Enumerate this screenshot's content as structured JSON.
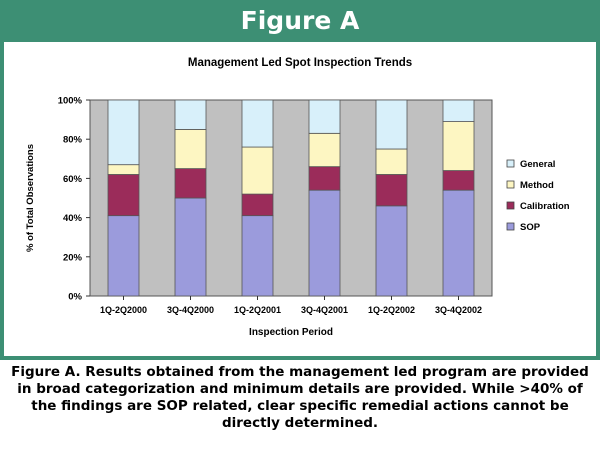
{
  "figure_label": "Figure A",
  "caption": "Figure A.  Results obtained from the management led program are provided in broad categorization and minimum details are provided.  While >40% of the findings are SOP related, clear specific remedial actions cannot be directly determined.",
  "chart_data": {
    "type": "bar",
    "stacked": true,
    "title": "Management Led Spot Inspection Trends",
    "xlabel": "Inspection Period",
    "ylabel": "% of Total Observations",
    "ylim": [
      0,
      100
    ],
    "yticks": [
      "0%",
      "20%",
      "40%",
      "60%",
      "80%",
      "100%"
    ],
    "categories": [
      "1Q-2Q2000",
      "3Q-4Q2000",
      "1Q-2Q2001",
      "3Q-4Q2001",
      "1Q-2Q2002",
      "3Q-4Q2002"
    ],
    "series": [
      {
        "name": "SOP",
        "color": "#9b9bdc",
        "values": [
          41,
          50,
          41,
          54,
          46,
          54
        ]
      },
      {
        "name": "Calibration",
        "color": "#9b2c5a",
        "values": [
          21,
          15,
          11,
          12,
          16,
          10
        ]
      },
      {
        "name": "Method",
        "color": "#fdf6c2",
        "values": [
          5,
          20,
          24,
          17,
          13,
          25
        ]
      },
      {
        "name": "General",
        "color": "#d8f0fa",
        "values": [
          33,
          15,
          24,
          17,
          25,
          11
        ]
      }
    ],
    "legend_order": [
      "General",
      "Method",
      "Calibration",
      "SOP"
    ],
    "legend_position": "right",
    "plot_background": "#c0c0c0",
    "grid": false
  }
}
